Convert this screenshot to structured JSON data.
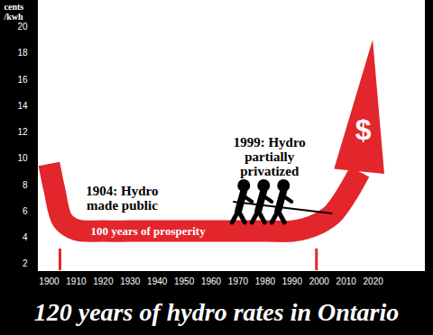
{
  "chart_data": {
    "type": "line",
    "title": "120 years of hydro rates in Ontario",
    "y_label": "cents\n/kwh",
    "x": [
      1900,
      1902,
      1905,
      1910,
      1920,
      1930,
      1940,
      1950,
      1960,
      1970,
      1980,
      1990,
      1995,
      2000,
      2005,
      2010,
      2015,
      2020
    ],
    "values": [
      9.6,
      7.6,
      5.3,
      4.6,
      4.5,
      4.5,
      4.5,
      4.5,
      4.5,
      4.5,
      4.5,
      4.5,
      4.7,
      5.1,
      5.8,
      7.2,
      9.0,
      19.0
    ],
    "color": "#e3262c",
    "xlim": [
      1896,
      2039
    ],
    "ylim": [
      1.5,
      22
    ],
    "xticks": [
      1900,
      1910,
      1920,
      1930,
      1940,
      1950,
      1960,
      1970,
      1980,
      1990,
      2000,
      2010,
      2020
    ],
    "yticks": [
      2,
      4,
      6,
      8,
      10,
      12,
      14,
      16,
      18,
      20
    ],
    "events": [
      {
        "x": 1904,
        "label": "1904: Hydro\nmade public"
      },
      {
        "x": 1999,
        "label": "1999: Hydro\npartially\nprivatized"
      }
    ],
    "band_label": "100 years of prosperity",
    "arrow_label": "$",
    "grid": false
  }
}
